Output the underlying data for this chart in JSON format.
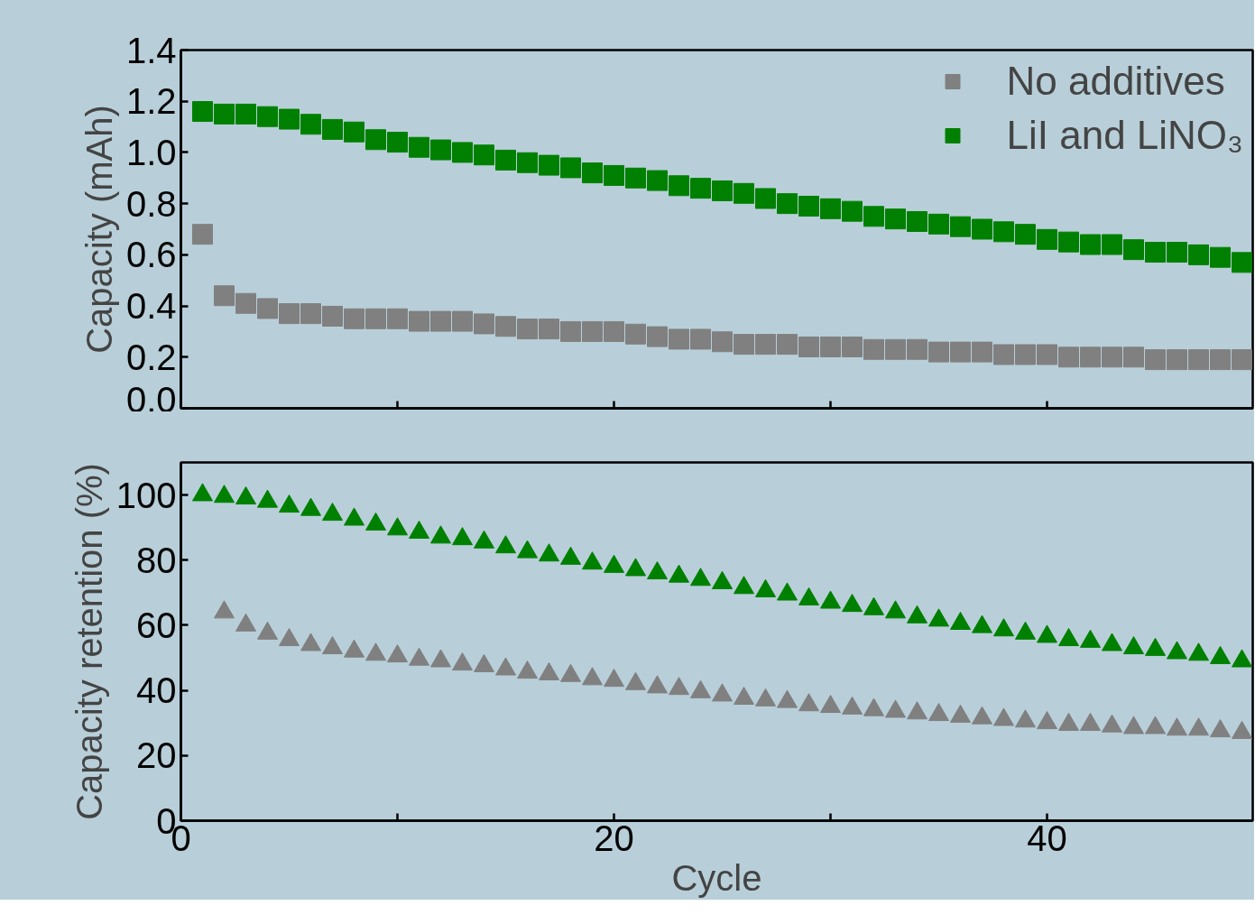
{
  "chart_data": [
    {
      "type": "scatter",
      "ylabel": "Capacity (mAh)",
      "x": [
        1,
        2,
        3,
        4,
        5,
        6,
        7,
        8,
        9,
        10,
        11,
        12,
        13,
        14,
        15,
        16,
        17,
        18,
        19,
        20,
        21,
        22,
        23,
        24,
        25,
        26,
        27,
        28,
        29,
        30,
        31,
        32,
        33,
        34,
        35,
        36,
        37,
        38,
        39,
        40,
        41,
        42,
        43,
        44,
        45,
        46,
        47,
        48,
        49
      ],
      "xlim": [
        0,
        49.5
      ],
      "xticks": [
        {
          "value": 0,
          "label": null
        },
        {
          "value": 10,
          "label": null
        },
        {
          "value": 20,
          "label": null
        },
        {
          "value": 30,
          "label": null
        },
        {
          "value": 40,
          "label": null
        }
      ],
      "ylim": [
        0,
        1.4
      ],
      "yticks": [
        {
          "value": 0,
          "label": "0.0"
        },
        {
          "value": 0.2,
          "label": "0.2"
        },
        {
          "value": 0.4,
          "label": "0.4"
        },
        {
          "value": 0.6,
          "label": "0.6"
        },
        {
          "value": 0.8,
          "label": "0.8"
        },
        {
          "value": 1,
          "label": "1.0"
        },
        {
          "value": 1.2,
          "label": "1.2"
        },
        {
          "value": 1.4,
          "label": "1.4"
        }
      ],
      "tick_labels": "y",
      "marker": "square",
      "legend": "top right",
      "grid": false,
      "series": [
        {
          "name": "No additives",
          "color": "#808080",
          "values": [
            0.68,
            0.44,
            0.41,
            0.39,
            0.37,
            0.37,
            0.36,
            0.35,
            0.35,
            0.35,
            0.34,
            0.34,
            0.34,
            0.33,
            0.32,
            0.31,
            0.31,
            0.3,
            0.3,
            0.3,
            0.29,
            0.28,
            0.27,
            0.27,
            0.26,
            0.25,
            0.25,
            0.25,
            0.24,
            0.24,
            0.24,
            0.23,
            0.23,
            0.23,
            0.22,
            0.22,
            0.22,
            0.21,
            0.21,
            0.21,
            0.2,
            0.2,
            0.2,
            0.2,
            0.19,
            0.19,
            0.19,
            0.19,
            0.19
          ]
        },
        {
          "name": "LiI and LiNO₃",
          "color": "#008000",
          "values": [
            1.16,
            1.15,
            1.15,
            1.14,
            1.13,
            1.11,
            1.09,
            1.08,
            1.05,
            1.04,
            1.02,
            1.01,
            1.0,
            0.99,
            0.97,
            0.96,
            0.95,
            0.94,
            0.92,
            0.91,
            0.9,
            0.89,
            0.87,
            0.86,
            0.85,
            0.84,
            0.82,
            0.8,
            0.79,
            0.78,
            0.77,
            0.75,
            0.74,
            0.73,
            0.72,
            0.71,
            0.7,
            0.69,
            0.68,
            0.66,
            0.65,
            0.64,
            0.64,
            0.62,
            0.61,
            0.61,
            0.6,
            0.59,
            0.57
          ]
        }
      ]
    },
    {
      "type": "scatter",
      "ylabel": "Capacity retention (%)",
      "xlabel": "Cycle",
      "x": [
        1,
        2,
        3,
        4,
        5,
        6,
        7,
        8,
        9,
        10,
        11,
        12,
        13,
        14,
        15,
        16,
        17,
        18,
        19,
        20,
        21,
        22,
        23,
        24,
        25,
        26,
        27,
        28,
        29,
        30,
        31,
        32,
        33,
        34,
        35,
        36,
        37,
        38,
        39,
        40,
        41,
        42,
        43,
        44,
        45,
        46,
        47,
        48,
        49
      ],
      "xlim": [
        0,
        49.5
      ],
      "xticks": [
        0,
        {
          "value": 10,
          "label": null
        },
        20,
        {
          "value": 30,
          "label": null
        },
        40
      ],
      "ylim": [
        0,
        110
      ],
      "yticks": [
        0,
        20,
        40,
        60,
        80,
        100
      ],
      "marker": "triangle",
      "grid": false,
      "series": [
        {
          "color": "#808080",
          "values": [
            null,
            64,
            60,
            57.5,
            55.5,
            54,
            53,
            52,
            51,
            50.5,
            49.5,
            49,
            48,
            47.5,
            46.5,
            45.5,
            45,
            44.5,
            43.5,
            43,
            42,
            41,
            40.5,
            39.5,
            38.5,
            37.5,
            37,
            36.5,
            35.5,
            35,
            34.5,
            34,
            33.5,
            33,
            32.5,
            32,
            31.5,
            31,
            30.5,
            30,
            29.5,
            29.5,
            29,
            28.5,
            28.5,
            28,
            28,
            27.5,
            27
          ]
        },
        {
          "color": "#008000",
          "values": [
            100,
            99.5,
            99,
            98,
            96.5,
            95.5,
            94,
            92.5,
            91,
            89.5,
            88.5,
            87,
            86.5,
            85.5,
            84,
            82.5,
            81.5,
            80.5,
            79,
            78,
            77,
            76,
            75,
            74,
            73,
            71.5,
            70.5,
            69.5,
            68,
            67,
            66,
            65,
            64,
            62.5,
            61.5,
            60.5,
            59.5,
            58.5,
            57.5,
            56.5,
            55.5,
            55,
            54,
            53,
            52.5,
            51.5,
            51,
            50,
            49
          ]
        }
      ]
    }
  ]
}
